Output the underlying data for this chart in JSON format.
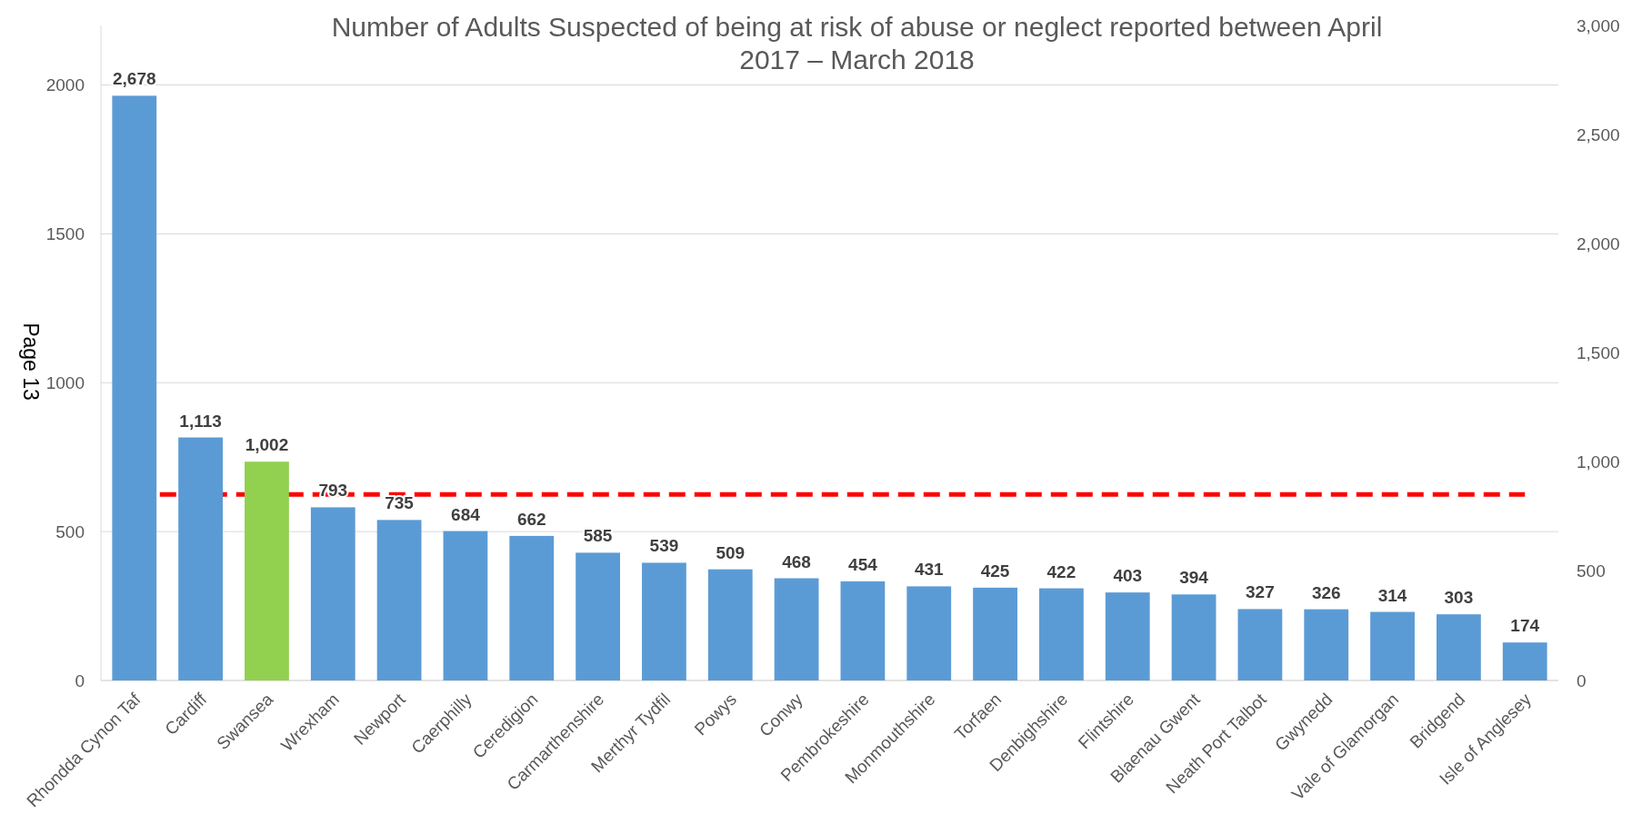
{
  "chart_data": {
    "type": "bar",
    "title": "Number of Adults Suspected of being at risk of abuse or neglect reported between April 2017 – March 2018",
    "categories": [
      "Rhondda Cynon Taf",
      "Cardiff",
      "Swansea",
      "Wrexham",
      "Newport",
      "Caerphilly",
      "Ceredigion",
      "Carmarthenshire",
      "Merthyr Tydfil",
      "Powys",
      "Conwy",
      "Pembrokeshire",
      "Monmouthshire",
      "Torfaen",
      "Denbighshire",
      "Flintshire",
      "Blaenau Gwent",
      "Neath Port Talbot",
      "Gwynedd",
      "Vale of Glamorgan",
      "Bridgend",
      "Isle of Anglesey"
    ],
    "series": [
      {
        "axis": "y2",
        "values": [
          2678,
          1113,
          1002,
          793,
          735,
          684,
          662,
          585,
          539,
          509,
          468,
          454,
          431,
          425,
          422,
          403,
          394,
          327,
          326,
          314,
          303,
          174
        ],
        "value_labels": [
          "2,678",
          "1,113",
          "1,002",
          "793",
          "735",
          "684",
          "662",
          "585",
          "539",
          "509",
          "468",
          "454",
          "431",
          "425",
          "422",
          "403",
          "394",
          "327",
          "326",
          "314",
          "303",
          "174"
        ],
        "colors": [
          "#5b9bd5",
          "#5b9bd5",
          "#92d050",
          "#5b9bd5",
          "#5b9bd5",
          "#5b9bd5",
          "#5b9bd5",
          "#5b9bd5",
          "#5b9bd5",
          "#5b9bd5",
          "#5b9bd5",
          "#5b9bd5",
          "#5b9bd5",
          "#5b9bd5",
          "#5b9bd5",
          "#5b9bd5",
          "#5b9bd5",
          "#5b9bd5",
          "#5b9bd5",
          "#5b9bd5",
          "#5b9bd5",
          "#5b9bd5"
        ]
      }
    ],
    "ylim": [
      0,
      2200
    ],
    "yticks": [
      0,
      500,
      1000,
      1500,
      2000
    ],
    "y2lim": [
      0,
      3000
    ],
    "y2ticks": [
      0,
      {
        "value": 500,
        "label": "500"
      },
      {
        "value": 1000,
        "label": "1,000"
      },
      {
        "value": 1500,
        "label": "1,500"
      },
      {
        "value": 2000,
        "label": "2,000"
      },
      {
        "value": 2500,
        "label": "2,500"
      },
      {
        "value": 3000,
        "label": "3,000"
      }
    ],
    "grid": "y",
    "ref_lines": [
      {
        "axis": "y",
        "value": 625,
        "color": "#ff0000",
        "line_style": "dashed"
      }
    ],
    "annotations": [
      "Page 13"
    ]
  }
}
